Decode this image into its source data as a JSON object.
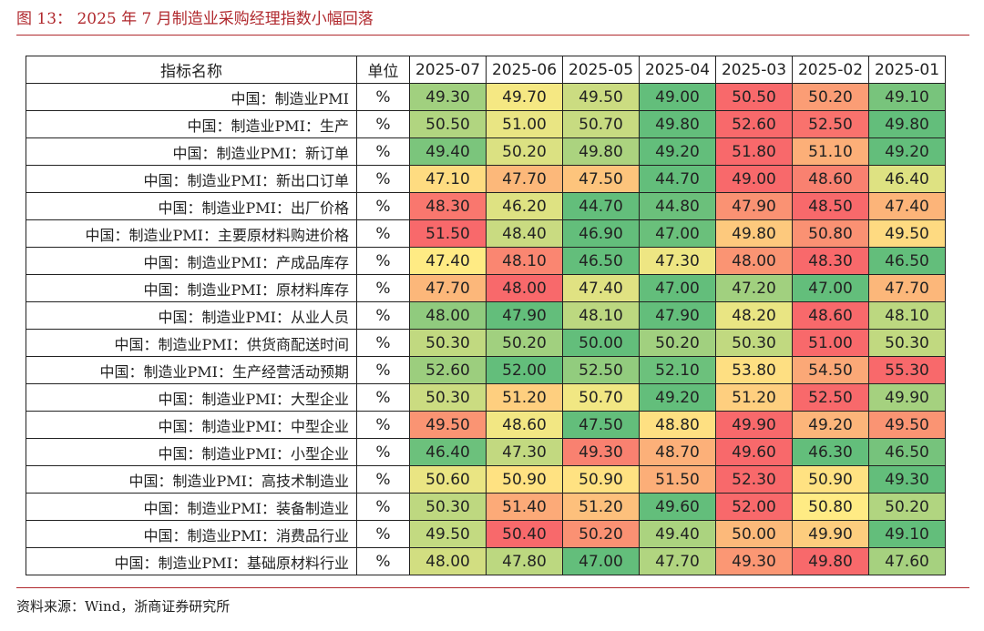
{
  "title": "图 13：  2025 年 7 月制造业采购经理指数小幅回落",
  "table": {
    "header": {
      "name": "指标名称",
      "unit": "单位",
      "periods": [
        "2025-07",
        "2025-06",
        "2025-05",
        "2025-04",
        "2025-03",
        "2025-02",
        "2025-01"
      ]
    },
    "rows": [
      {
        "name": "中国：制造业PMI",
        "unit": "%",
        "values": [
          "49.30",
          "49.70",
          "49.50",
          "49.00",
          "50.50",
          "50.20",
          "49.10"
        ]
      },
      {
        "name": "中国：制造业PMI：生产",
        "unit": "%",
        "values": [
          "50.50",
          "51.00",
          "50.70",
          "49.80",
          "52.60",
          "52.50",
          "49.80"
        ]
      },
      {
        "name": "中国：制造业PMI：新订单",
        "unit": "%",
        "values": [
          "49.40",
          "50.20",
          "49.80",
          "49.20",
          "51.80",
          "51.10",
          "49.20"
        ]
      },
      {
        "name": "中国：制造业PMI：新出口订单",
        "unit": "%",
        "values": [
          "47.10",
          "47.70",
          "47.50",
          "44.70",
          "49.00",
          "48.60",
          "46.40"
        ]
      },
      {
        "name": "中国：制造业PMI：出厂价格",
        "unit": "%",
        "values": [
          "48.30",
          "46.20",
          "44.70",
          "44.80",
          "47.90",
          "48.50",
          "47.40"
        ]
      },
      {
        "name": "中国：制造业PMI：主要原材料购进价格",
        "unit": "%",
        "values": [
          "51.50",
          "48.40",
          "46.90",
          "47.00",
          "49.80",
          "50.80",
          "49.50"
        ]
      },
      {
        "name": "中国：制造业PMI：产成品库存",
        "unit": "%",
        "values": [
          "47.40",
          "48.10",
          "46.50",
          "47.30",
          "48.00",
          "48.30",
          "46.50"
        ]
      },
      {
        "name": "中国：制造业PMI：原材料库存",
        "unit": "%",
        "values": [
          "47.70",
          "48.00",
          "47.40",
          "47.00",
          "47.20",
          "47.00",
          "47.70"
        ]
      },
      {
        "name": "中国：制造业PMI：从业人员",
        "unit": "%",
        "values": [
          "48.00",
          "47.90",
          "48.10",
          "47.90",
          "48.20",
          "48.60",
          "48.10"
        ]
      },
      {
        "name": "中国：制造业PMI：供货商配送时间",
        "unit": "%",
        "values": [
          "50.30",
          "50.20",
          "50.00",
          "50.20",
          "50.30",
          "51.00",
          "50.30"
        ]
      },
      {
        "name": "中国：制造业PMI：生产经营活动预期",
        "unit": "%",
        "values": [
          "52.60",
          "52.00",
          "52.50",
          "52.10",
          "53.80",
          "54.50",
          "55.30"
        ]
      },
      {
        "name": "中国：制造业PMI：大型企业",
        "unit": "%",
        "values": [
          "50.30",
          "51.20",
          "50.70",
          "49.20",
          "51.20",
          "52.50",
          "49.90"
        ]
      },
      {
        "name": "中国：制造业PMI：中型企业",
        "unit": "%",
        "values": [
          "49.50",
          "48.60",
          "47.50",
          "48.80",
          "49.90",
          "49.20",
          "49.50"
        ]
      },
      {
        "name": "中国：制造业PMI：小型企业",
        "unit": "%",
        "values": [
          "46.40",
          "47.30",
          "49.30",
          "48.70",
          "49.60",
          "46.30",
          "46.50"
        ]
      },
      {
        "name": "中国：制造业PMI：高技术制造业",
        "unit": "%",
        "values": [
          "50.60",
          "50.90",
          "50.90",
          "51.50",
          "52.30",
          "50.90",
          "49.30"
        ]
      },
      {
        "name": "中国：制造业PMI：装备制造业",
        "unit": "%",
        "values": [
          "50.30",
          "51.40",
          "51.20",
          "49.60",
          "52.00",
          "50.80",
          "50.20"
        ]
      },
      {
        "name": "中国：制造业PMI：消费品行业",
        "unit": "%",
        "values": [
          "49.50",
          "50.40",
          "50.20",
          "49.40",
          "50.00",
          "49.90",
          "49.10"
        ]
      },
      {
        "name": "中国：制造业PMI：基础原材料行业",
        "unit": "%",
        "values": [
          "48.00",
          "47.80",
          "47.00",
          "47.70",
          "49.30",
          "49.80",
          "47.60"
        ]
      }
    ]
  },
  "source": "资料来源：Wind，浙商证券研究所",
  "colors": {
    "accent": "#b0282d",
    "low": "#63be7b",
    "mid": "#ffeb84",
    "high": "#f8696b"
  }
}
